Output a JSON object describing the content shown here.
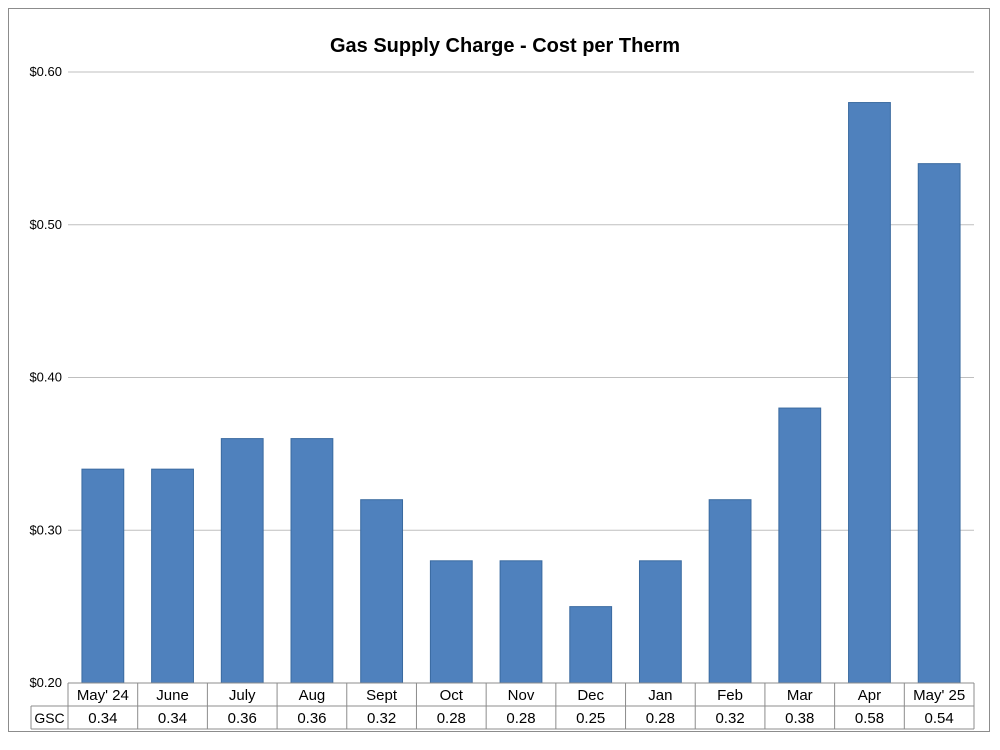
{
  "chart_data": {
    "type": "bar",
    "title": "Gas Supply Charge - Cost per Therm",
    "xlabel": "",
    "ylabel": "",
    "categories": [
      "May' 24",
      "June",
      "July",
      "Aug",
      "Sept",
      "Oct",
      "Nov",
      "Dec",
      "Jan",
      "Feb",
      "Mar",
      "Apr",
      "May' 25"
    ],
    "series": [
      {
        "name": "GSC",
        "values": [
          0.34,
          0.34,
          0.36,
          0.36,
          0.32,
          0.28,
          0.28,
          0.25,
          0.28,
          0.32,
          0.38,
          0.58,
          0.54
        ],
        "labels": [
          "0.34",
          "0.34",
          "0.36",
          "0.36",
          "0.32",
          "0.28",
          "0.28",
          "0.25",
          "0.28",
          "0.32",
          "0.38",
          "0.58",
          "0.54"
        ]
      }
    ],
    "ylim": [
      0.2,
      0.6
    ],
    "yticks": [
      0.2,
      0.3,
      0.4,
      0.5,
      0.6
    ],
    "ytick_labels": [
      "$0.20",
      "$0.30",
      "$0.40",
      "$0.50",
      "$0.60"
    ],
    "grid": true,
    "data_table": true,
    "bar_color": "#4F81BD",
    "bar_border_color": "#3A6AA0",
    "grid_color": "#BFBFBF"
  }
}
